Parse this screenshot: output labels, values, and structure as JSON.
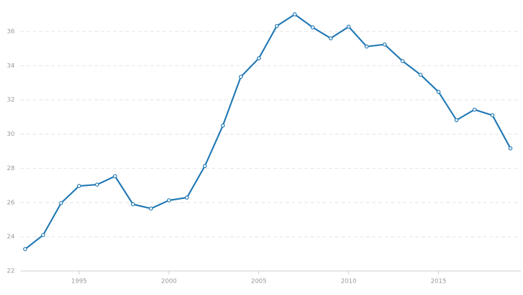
{
  "chart_data": {
    "type": "line",
    "x": [
      1992,
      1993,
      1994,
      1995,
      1996,
      1997,
      1998,
      1999,
      2000,
      2001,
      2002,
      2003,
      2004,
      2005,
      2006,
      2007,
      2008,
      2009,
      2010,
      2011,
      2012,
      2013,
      2014,
      2015,
      2016,
      2017,
      2018,
      2019
    ],
    "series": [
      {
        "color": "#1f77b4",
        "values": [
          23.28,
          24.1,
          25.97,
          26.97,
          27.05,
          27.54,
          25.9,
          25.65,
          26.13,
          26.29,
          28.14,
          30.5,
          33.35,
          34.43,
          36.32,
          37.0,
          36.24,
          35.6,
          36.28,
          35.12,
          35.24,
          34.27,
          33.47,
          32.47,
          30.82,
          31.43,
          31.1,
          29.17
        ]
      }
    ],
    "xlim": [
      1990.6,
      2019.7
    ],
    "xticks": [
      1995,
      2000,
      2005,
      2010,
      2015
    ],
    "ylim": [
      22,
      37.8
    ],
    "yticks": [
      22,
      24,
      26,
      28,
      30,
      32,
      34,
      36
    ],
    "grid": true
  }
}
